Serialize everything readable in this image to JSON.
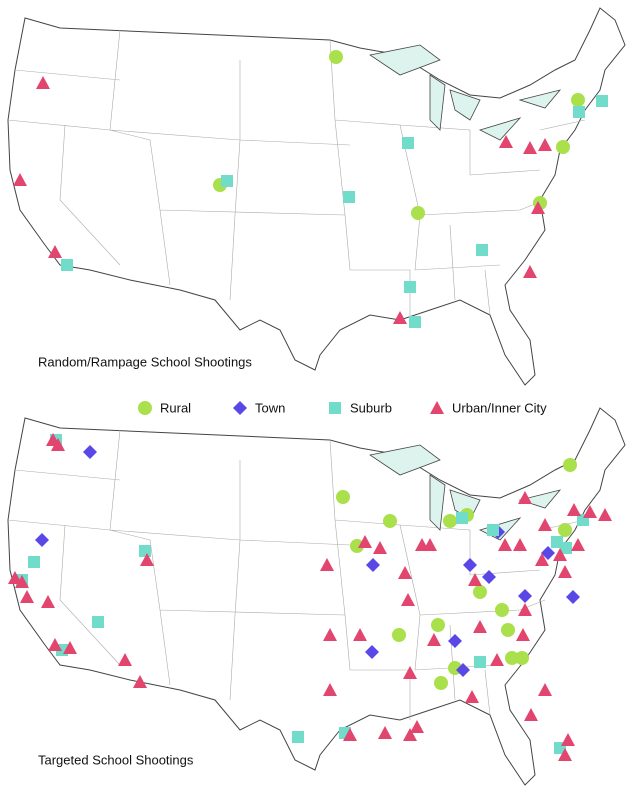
{
  "maps": [
    {
      "title": "Random/Rampage School Shootings"
    },
    {
      "title": "Targeted School Shootings"
    }
  ],
  "legend": [
    {
      "label": "Rural",
      "color": "#a9e04c",
      "shape": "circle"
    },
    {
      "label": "Town",
      "color": "#5a48e6",
      "shape": "diamond"
    },
    {
      "label": "Suburb",
      "color": "#72dcca",
      "shape": "square"
    },
    {
      "label": "Urban/Inner City",
      "color": "#e2456e",
      "shape": "triangle"
    }
  ]
}
